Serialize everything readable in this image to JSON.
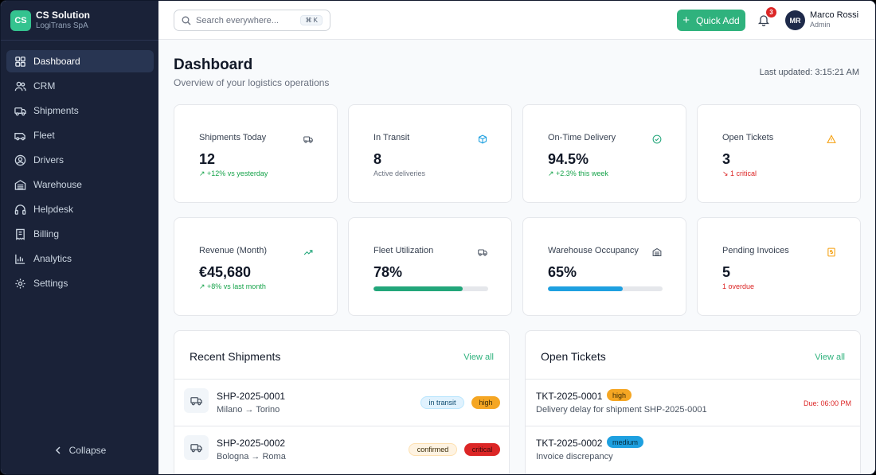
{
  "brand": {
    "logo": "CS",
    "name": "CS Solution",
    "company": "LogiTrans SpA"
  },
  "sidebar": {
    "items": [
      {
        "label": "Dashboard",
        "icon": "dashboard-icon"
      },
      {
        "label": "CRM",
        "icon": "users-icon"
      },
      {
        "label": "Shipments",
        "icon": "truck-icon"
      },
      {
        "label": "Fleet",
        "icon": "van-icon"
      },
      {
        "label": "Drivers",
        "icon": "user-circle-icon"
      },
      {
        "label": "Warehouse",
        "icon": "warehouse-icon"
      },
      {
        "label": "Helpdesk",
        "icon": "headphones-icon"
      },
      {
        "label": "Billing",
        "icon": "receipt-icon"
      },
      {
        "label": "Analytics",
        "icon": "chart-icon"
      },
      {
        "label": "Settings",
        "icon": "gear-icon"
      }
    ],
    "collapse_label": "Collapse"
  },
  "topbar": {
    "search_placeholder": "Search everywhere...",
    "search_shortcut": "⌘ K",
    "quick_add_label": "Quick Add",
    "notification_count": "3",
    "user": {
      "initials": "MR",
      "name": "Marco Rossi",
      "role": "Admin"
    }
  },
  "page": {
    "title": "Dashboard",
    "subtitle": "Overview of your logistics operations",
    "last_updated": "Last updated: 3:15:21 AM"
  },
  "stats": {
    "shipments_today": {
      "label": "Shipments Today",
      "value": "12",
      "note": "↗ +12% vs yesterday"
    },
    "in_transit": {
      "label": "In Transit",
      "value": "8",
      "note": "Active deliveries"
    },
    "on_time": {
      "label": "On-Time Delivery",
      "value": "94.5%",
      "note": "↗ +2.3% this week"
    },
    "open_tickets": {
      "label": "Open Tickets",
      "value": "3",
      "note": "↘ 1 critical"
    },
    "revenue": {
      "label": "Revenue (Month)",
      "value": "€45,680",
      "note": "↗ +8% vs last month"
    },
    "fleet_util": {
      "label": "Fleet Utilization",
      "value": "78%",
      "fill_percent": 78,
      "color": "#22a67a"
    },
    "warehouse_occ": {
      "label": "Warehouse Occupancy",
      "value": "65%",
      "fill_percent": 65,
      "color": "#1ea0e0"
    },
    "pending_invoices": {
      "label": "Pending Invoices",
      "value": "5",
      "note": "1 overdue"
    }
  },
  "recent_shipments": {
    "title": "Recent Shipments",
    "view_all": "View all",
    "rows": [
      {
        "id": "SHP-2025-0001",
        "route": "Milano → Torino",
        "status": "in transit",
        "priority": "high"
      },
      {
        "id": "SHP-2025-0002",
        "route": "Bologna → Roma",
        "status": "confirmed",
        "priority": "critical"
      }
    ]
  },
  "open_tickets": {
    "title": "Open Tickets",
    "view_all": "View all",
    "rows": [
      {
        "id": "TKT-2025-0001",
        "priority": "high",
        "description": "Delivery delay for shipment SHP-2025-0001",
        "due": "Due: 06:00 PM"
      },
      {
        "id": "TKT-2025-0002",
        "priority": "medium",
        "description": "Invoice discrepancy"
      }
    ]
  },
  "colors": {
    "accent": "#2fb27d",
    "sidebar_bg": "#1a2238",
    "danger": "#dc2626",
    "warning": "#f59e0b",
    "info": "#1ea0e0"
  }
}
